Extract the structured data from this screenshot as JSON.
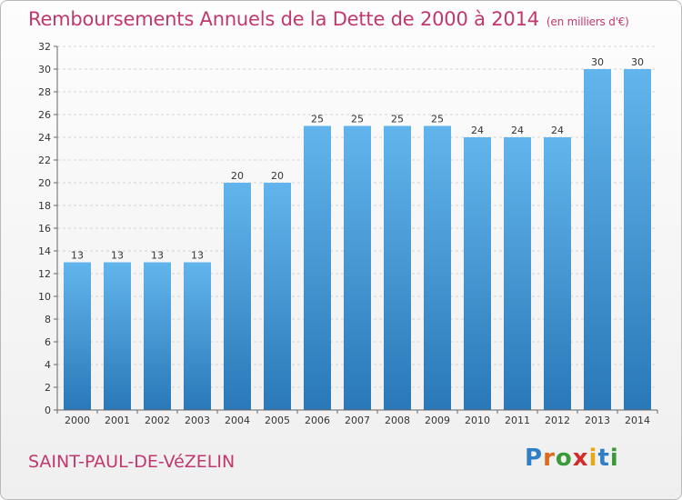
{
  "header": {
    "title": "Remboursements Annuels de la Dette de 2000 à 2014",
    "unit": "(en milliers d'€)"
  },
  "footer": {
    "commune": "SAINT-PAUL-DE-VéZELIN",
    "brand": [
      "P",
      "r",
      "o",
      "x",
      "i",
      "t",
      "i"
    ],
    "brand_colors": [
      "#2e7fc8",
      "#e06a1b",
      "#3a9a3a",
      "#d52b2b",
      "#e6a817",
      "#2e7fc8",
      "#3a9a3a"
    ]
  },
  "colors": {
    "bar_top": "#62b5ec",
    "bar_bottom": "#2a78b8",
    "title": "#c0386e"
  },
  "chart_data": {
    "type": "bar",
    "title": "Remboursements Annuels de la Dette de 2000 à 2014",
    "categories": [
      "2000",
      "2001",
      "2002",
      "2003",
      "2004",
      "2005",
      "2006",
      "2007",
      "2008",
      "2009",
      "2010",
      "2011",
      "2012",
      "2013",
      "2014"
    ],
    "values": [
      13,
      13,
      13,
      13,
      20,
      20,
      25,
      25,
      25,
      25,
      24,
      24,
      24,
      30,
      30
    ],
    "xlabel": "",
    "ylabel": "",
    "ylim": [
      0,
      32
    ],
    "yticks": [
      0,
      2,
      4,
      6,
      8,
      10,
      12,
      14,
      16,
      18,
      20,
      22,
      24,
      26,
      28,
      30,
      32
    ],
    "grid": true,
    "data_labels": true
  }
}
